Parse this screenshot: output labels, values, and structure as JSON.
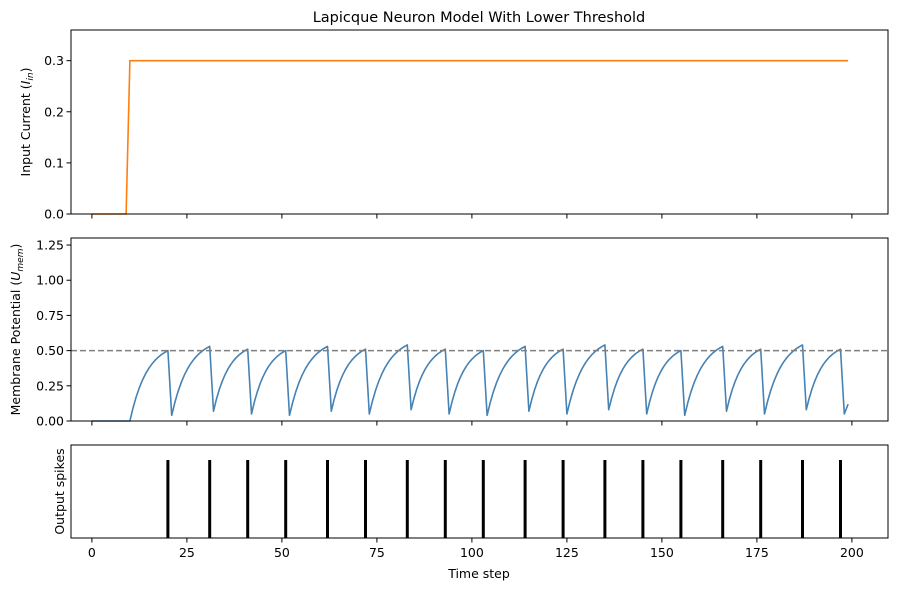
{
  "chart_data": {
    "title": "Lapicque Neuron Model With Lower Threshold",
    "xlabel": "Time step",
    "x_ticks": [
      0,
      25,
      50,
      75,
      100,
      125,
      150,
      175,
      200
    ],
    "x_tick_labels": [
      "0",
      "25",
      "50",
      "75",
      "100",
      "125",
      "150",
      "175",
      "200"
    ],
    "xlim": [
      -5.5,
      209.5
    ],
    "panels": [
      {
        "type": "line",
        "ylabel_main": "Input Current (",
        "ylabel_sym": "I",
        "ylabel_sub": "in",
        "ylabel_close": ")",
        "ylim": [
          0,
          0.36
        ],
        "y_ticks": [
          0.0,
          0.1,
          0.2,
          0.3
        ],
        "y_tick_labels": [
          "0.0",
          "0.1",
          "0.2",
          "0.3"
        ],
        "series": [
          {
            "name": "input-current",
            "color": "#ff7f0e",
            "x": [
              0,
              9,
              10,
              199
            ],
            "y": [
              0,
              0,
              0.3,
              0.3
            ]
          }
        ]
      },
      {
        "type": "line",
        "ylabel_main": "Membrane Potential (",
        "ylabel_sym": "U",
        "ylabel_sub": "mem",
        "ylabel_close": ")",
        "ylim": [
          0,
          1.3
        ],
        "y_ticks": [
          0.0,
          0.25,
          0.5,
          0.75,
          1.0,
          1.25
        ],
        "y_tick_labels": [
          "0.00",
          "0.25",
          "0.50",
          "0.75",
          "1.00",
          "1.25"
        ],
        "threshold": {
          "value": 0.5,
          "color": "#808080"
        },
        "membrane": {
          "color": "#4682b4",
          "onset": 10,
          "start_x": 0,
          "end_x": 199,
          "end_value": 0.12,
          "peaks": [
            {
              "x": 20,
              "v": 0.5
            },
            {
              "x": 31,
              "v": 0.53
            },
            {
              "x": 41,
              "v": 0.51
            },
            {
              "x": 51,
              "v": 0.5
            },
            {
              "x": 62,
              "v": 0.53
            },
            {
              "x": 72,
              "v": 0.51
            },
            {
              "x": 83,
              "v": 0.54
            },
            {
              "x": 93,
              "v": 0.51
            },
            {
              "x": 103,
              "v": 0.5
            },
            {
              "x": 114,
              "v": 0.53
            },
            {
              "x": 124,
              "v": 0.51
            },
            {
              "x": 135,
              "v": 0.54
            },
            {
              "x": 145,
              "v": 0.51
            },
            {
              "x": 155,
              "v": 0.5
            },
            {
              "x": 166,
              "v": 0.53
            },
            {
              "x": 176,
              "v": 0.51
            },
            {
              "x": 187,
              "v": 0.54
            },
            {
              "x": 197,
              "v": 0.51
            }
          ],
          "troughs": [
            0.04,
            0.07,
            0.05,
            0.04,
            0.07,
            0.05,
            0.08,
            0.05,
            0.04,
            0.07,
            0.05,
            0.08,
            0.05,
            0.04,
            0.07,
            0.05,
            0.08,
            0.05
          ]
        }
      },
      {
        "type": "raster",
        "ylabel": "Output spikes",
        "spike_color": "#000000",
        "spikes": [
          20,
          31,
          41,
          51,
          62,
          72,
          83,
          93,
          103,
          114,
          124,
          135,
          145,
          155,
          166,
          176,
          187,
          197
        ]
      }
    ]
  }
}
